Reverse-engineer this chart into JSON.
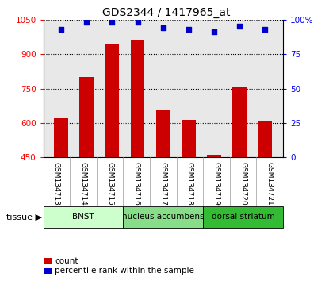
{
  "title": "GDS2344 / 1417965_at",
  "samples": [
    "GSM134713",
    "GSM134714",
    "GSM134715",
    "GSM134716",
    "GSM134717",
    "GSM134718",
    "GSM134719",
    "GSM134720",
    "GSM134721"
  ],
  "counts": [
    620,
    800,
    945,
    960,
    660,
    615,
    460,
    760,
    610
  ],
  "percentiles": [
    93,
    98,
    98,
    98,
    94,
    93,
    91,
    95,
    93
  ],
  "ylim_left": [
    450,
    1050
  ],
  "ylim_right": [
    0,
    100
  ],
  "yticks_left": [
    450,
    600,
    750,
    900,
    1050
  ],
  "yticks_right": [
    0,
    25,
    50,
    75,
    100
  ],
  "bar_color": "#cc0000",
  "dot_color": "#0000cc",
  "bar_bottom": 450,
  "groups": [
    {
      "label": "BNST",
      "start": 0,
      "end": 3,
      "color": "#ccffcc"
    },
    {
      "label": "nucleus accumbens",
      "start": 3,
      "end": 6,
      "color": "#88dd88"
    },
    {
      "label": "dorsal striatum",
      "start": 6,
      "end": 9,
      "color": "#33bb33"
    }
  ],
  "xlabel_tissue": "tissue",
  "legend_count": "count",
  "legend_pct": "percentile rank within the sample",
  "plot_bg_color": "#e8e8e8",
  "xtick_bg_color": "#cccccc",
  "grid_color": "#000000"
}
